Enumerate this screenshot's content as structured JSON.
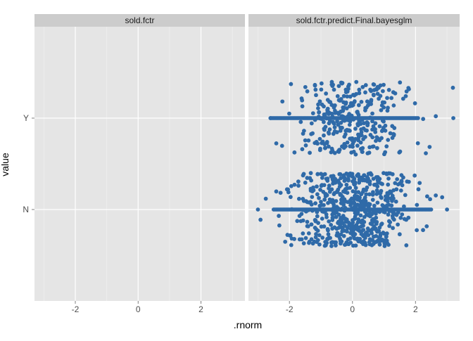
{
  "chart_data": {
    "type": "scatter",
    "facet_titles": [
      "sold.fctr",
      "sold.fctr.predict.Final.bayesglm"
    ],
    "xlabel": ".rnorm",
    "ylabel": "value",
    "x_ticks": [
      "-2",
      "0",
      "2"
    ],
    "y_categories": [
      "N",
      "Y"
    ],
    "xlim": [
      -3.3,
      3.4
    ],
    "jitter": 0.4,
    "grid": true,
    "point_color": "#2f6aa8",
    "panel_bg": "#e5e5e5",
    "strip_bg": "#cccccc",
    "panels": [
      {
        "title": "sold.fctr",
        "groups": []
      },
      {
        "title": "sold.fctr.predict.Final.bayesglm",
        "groups": [
          {
            "category": "Y",
            "count": 330,
            "x_min": -2.6,
            "x_max": 3.2,
            "band_from": -2.6,
            "band_to": 2.1
          },
          {
            "category": "N",
            "count": 620,
            "x_min": -3.0,
            "x_max": 3.0,
            "band_from": -2.5,
            "band_to": 2.5
          }
        ]
      }
    ]
  }
}
